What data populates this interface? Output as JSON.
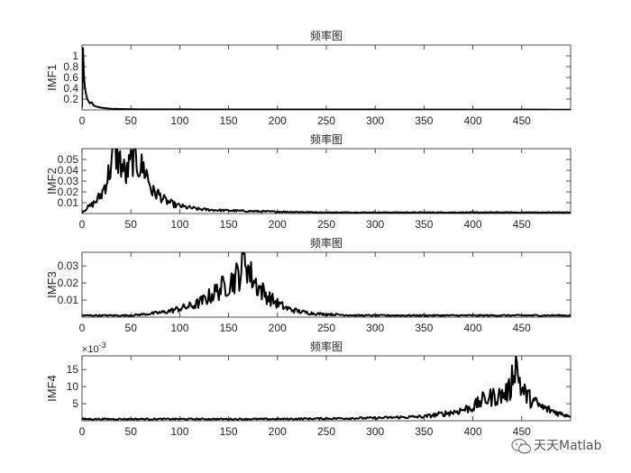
{
  "figure": {
    "watermark_text": "天天Matlab",
    "watermark_icon": "wechat-icon",
    "colors": {
      "line": "#000000",
      "axis": "#262626",
      "background": "#ffffff"
    }
  },
  "chart_data": [
    {
      "type": "line",
      "title": "频率图",
      "ylabel": "IMF1",
      "xlim": [
        0,
        500
      ],
      "ylim": [
        0,
        1.2
      ],
      "xticks": [
        0,
        50,
        100,
        150,
        200,
        250,
        300,
        350,
        400,
        450
      ],
      "yticks": [
        0.2,
        0.4,
        0.6,
        0.8,
        1
      ],
      "y_exponent": "",
      "grid": false,
      "series": [
        {
          "peaks": [
            [
              0,
              0.05
            ],
            [
              1,
              1.15
            ],
            [
              2,
              0.6
            ],
            [
              3,
              0.4
            ],
            [
              4,
              0.3
            ],
            [
              5,
              0.22
            ],
            [
              6,
              0.18
            ],
            [
              8,
              0.12
            ],
            [
              10,
              0.14
            ],
            [
              12,
              0.08
            ],
            [
              15,
              0.06
            ],
            [
              20,
              0.04
            ],
            [
              30,
              0.02
            ],
            [
              60,
              0.01
            ],
            [
              500,
              0.005
            ]
          ],
          "noise": 0.01
        }
      ]
    },
    {
      "type": "line",
      "title": "频率图",
      "ylabel": "IMF2",
      "xlim": [
        0,
        500
      ],
      "ylim": [
        0,
        0.06
      ],
      "xticks": [
        0,
        50,
        100,
        150,
        200,
        250,
        300,
        350,
        400,
        450
      ],
      "yticks": [
        0.01,
        0.02,
        0.03,
        0.04,
        0.05
      ],
      "y_exponent": "",
      "grid": false,
      "series": [
        {
          "peaks": [
            [
              0,
              0.001
            ],
            [
              5,
              0.005
            ],
            [
              10,
              0.008
            ],
            [
              15,
              0.012
            ],
            [
              20,
              0.018
            ],
            [
              25,
              0.03
            ],
            [
              30,
              0.045
            ],
            [
              33,
              0.058
            ],
            [
              38,
              0.05
            ],
            [
              45,
              0.035
            ],
            [
              52,
              0.052
            ],
            [
              58,
              0.045
            ],
            [
              65,
              0.04
            ],
            [
              72,
              0.02
            ],
            [
              78,
              0.018
            ],
            [
              85,
              0.012
            ],
            [
              95,
              0.008
            ],
            [
              105,
              0.006
            ],
            [
              120,
              0.004
            ],
            [
              140,
              0.003
            ],
            [
              180,
              0.002
            ],
            [
              250,
              0.001
            ],
            [
              500,
              0.001
            ]
          ],
          "noise": 0.35
        }
      ]
    },
    {
      "type": "line",
      "title": "频率图",
      "ylabel": "IMF3",
      "xlim": [
        0,
        500
      ],
      "ylim": [
        0,
        0.038
      ],
      "xticks": [
        0,
        50,
        100,
        150,
        200,
        250,
        300,
        350,
        400,
        450
      ],
      "yticks": [
        0.01,
        0.02,
        0.03
      ],
      "y_exponent": "",
      "grid": false,
      "series": [
        {
          "peaks": [
            [
              0,
              0.001
            ],
            [
              50,
              0.001
            ],
            [
              70,
              0.002
            ],
            [
              85,
              0.003
            ],
            [
              100,
              0.005
            ],
            [
              115,
              0.007
            ],
            [
              125,
              0.01
            ],
            [
              135,
              0.014
            ],
            [
              145,
              0.018
            ],
            [
              155,
              0.022
            ],
            [
              162,
              0.026
            ],
            [
              167,
              0.036
            ],
            [
              172,
              0.025
            ],
            [
              180,
              0.018
            ],
            [
              190,
              0.012
            ],
            [
              200,
              0.008
            ],
            [
              210,
              0.005
            ],
            [
              225,
              0.003
            ],
            [
              240,
              0.002
            ],
            [
              280,
              0.001
            ],
            [
              500,
              0.001
            ]
          ],
          "noise": 0.4
        }
      ]
    },
    {
      "type": "line",
      "title": "频率图",
      "ylabel": "IMF4",
      "xlim": [
        0,
        500
      ],
      "ylim": [
        0,
        19
      ],
      "xticks": [
        0,
        50,
        100,
        150,
        200,
        250,
        300,
        350,
        400,
        450
      ],
      "yticks": [
        5,
        10,
        15
      ],
      "y_exponent": "-3",
      "grid": false,
      "series": [
        {
          "peaks": [
            [
              0,
              0.5
            ],
            [
              200,
              0.5
            ],
            [
              300,
              0.8
            ],
            [
              350,
              1.2
            ],
            [
              380,
              2.5
            ],
            [
              400,
              4
            ],
            [
              410,
              6
            ],
            [
              420,
              7
            ],
            [
              430,
              7.5
            ],
            [
              438,
              9
            ],
            [
              443,
              18
            ],
            [
              450,
              9
            ],
            [
              460,
              6
            ],
            [
              470,
              4
            ],
            [
              480,
              3
            ],
            [
              490,
              2
            ],
            [
              500,
              1.5
            ]
          ],
          "noise": 0.4
        }
      ]
    }
  ]
}
